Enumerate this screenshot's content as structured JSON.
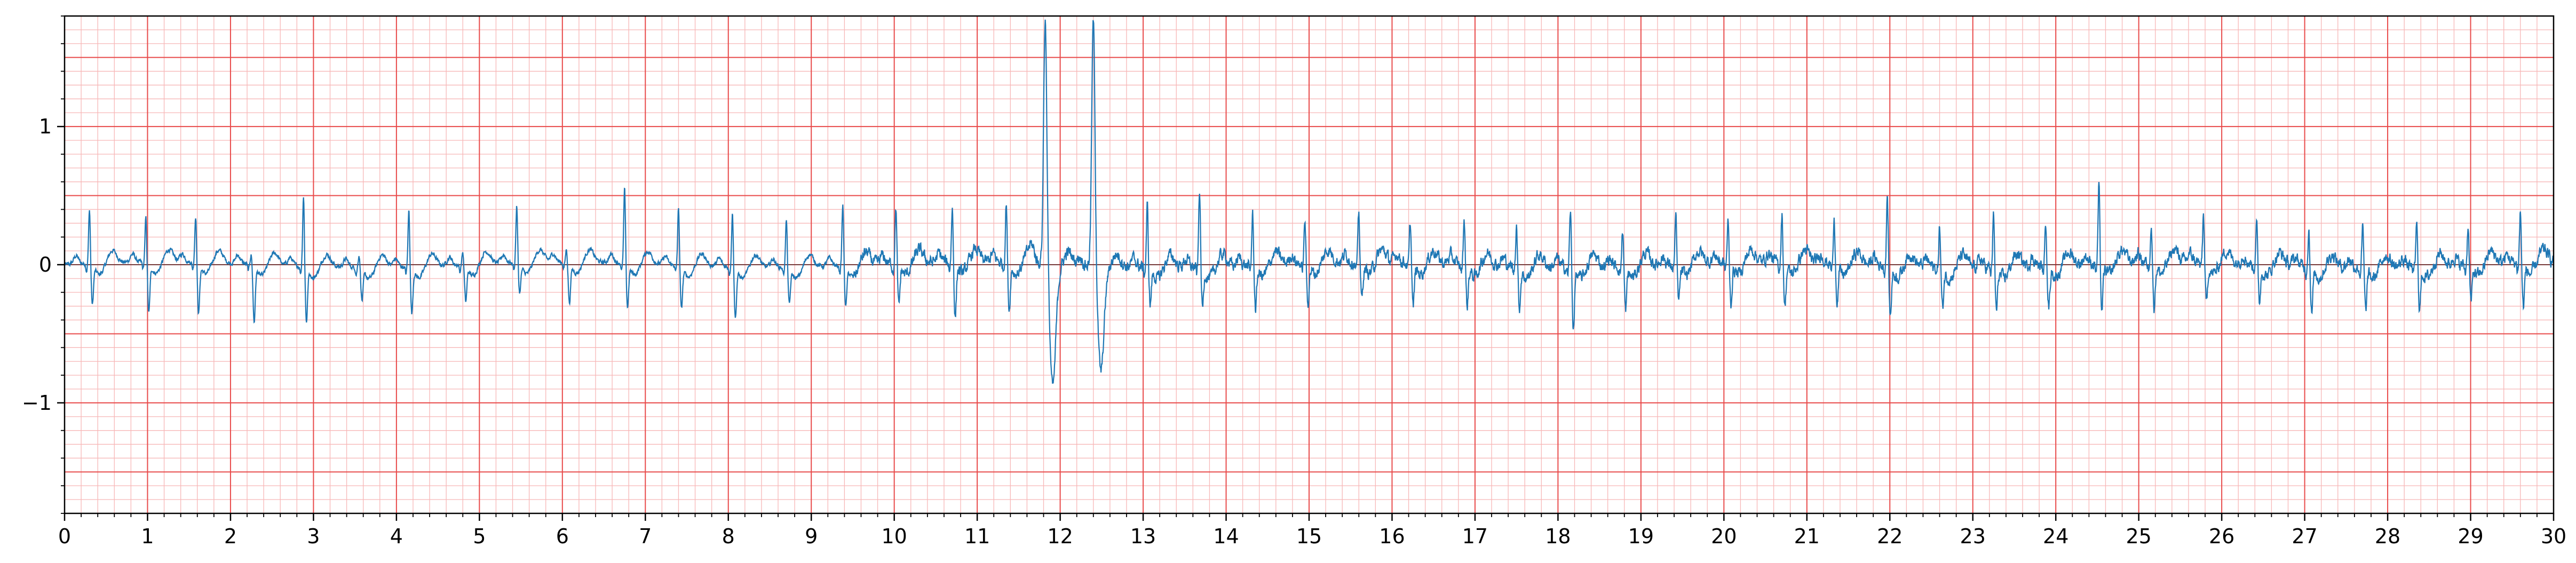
{
  "chart_data": {
    "type": "line",
    "title": "",
    "xlabel": "",
    "ylabel": "",
    "xlim": [
      0,
      30
    ],
    "ylim": [
      -1.8,
      1.8
    ],
    "x_ticks": [
      "0",
      "1",
      "2",
      "3",
      "4",
      "5",
      "6",
      "7",
      "8",
      "9",
      "10",
      "11",
      "12",
      "13",
      "14",
      "15",
      "16",
      "17",
      "18",
      "19",
      "20",
      "21",
      "22",
      "23",
      "24",
      "25",
      "26",
      "27",
      "28",
      "29",
      "30"
    ],
    "y_ticks": [
      {
        "value": -1,
        "label": "−1"
      },
      {
        "value": 0,
        "label": "0"
      },
      {
        "value": 1,
        "label": "1"
      }
    ],
    "grid": "ecg paper: major lines every 1 s and 0.5 mV, minor lines every 0.2 s and 0.1 mV",
    "colors": {
      "trace": "#1f77b4",
      "major_grid": "#e84a4a",
      "minor_grid": "#f7b7b7",
      "zero_line": "#333333"
    },
    "series": [
      {
        "name": "",
        "sampling_interval_s": 0.004,
        "beats": [
          0.3,
          0.98,
          1.58,
          2.25,
          2.88,
          3.55,
          4.15,
          4.8,
          5.45,
          6.05,
          6.75,
          7.4,
          8.05,
          8.7,
          9.38,
          10.02,
          10.7,
          11.35,
          11.82,
          12.4,
          13.05,
          13.68,
          14.32,
          14.95,
          15.6,
          16.22,
          16.87,
          17.5,
          18.15,
          18.78,
          19.42,
          20.05,
          20.7,
          21.33,
          21.97,
          22.6,
          23.25,
          23.88,
          24.52,
          25.15,
          25.78,
          26.42,
          27.05,
          27.7,
          28.35,
          28.97,
          29.6
        ],
        "r_peaks": [
          0.4,
          0.33,
          0.35,
          0.08,
          0.52,
          0.1,
          0.42,
          0.1,
          0.42,
          0.1,
          0.55,
          0.42,
          0.4,
          0.35,
          0.45,
          0.42,
          0.4,
          0.45,
          1.8,
          1.8,
          0.45,
          0.58,
          0.38,
          0.32,
          0.35,
          0.3,
          0.35,
          0.32,
          0.42,
          0.28,
          0.35,
          0.3,
          0.35,
          0.3,
          0.52,
          0.3,
          0.38,
          0.32,
          0.58,
          0.28,
          0.35,
          0.32,
          0.28,
          0.3,
          0.32,
          0.3,
          0.38
        ],
        "s_troughs": [
          -0.28,
          -0.35,
          -0.35,
          -0.4,
          -0.38,
          -0.22,
          -0.32,
          -0.25,
          -0.2,
          -0.28,
          -0.3,
          -0.3,
          -0.35,
          -0.25,
          -0.28,
          -0.3,
          -0.38,
          -0.32,
          -0.82,
          -0.7,
          -0.25,
          -0.28,
          -0.3,
          -0.28,
          -0.25,
          -0.3,
          -0.28,
          -0.28,
          -0.42,
          -0.3,
          -0.25,
          -0.28,
          -0.3,
          -0.25,
          -0.35,
          -0.28,
          -0.3,
          -0.28,
          -0.32,
          -0.3,
          -0.28,
          -0.25,
          -0.32,
          -0.3,
          -0.28,
          -0.25,
          -0.3
        ]
      }
    ]
  }
}
